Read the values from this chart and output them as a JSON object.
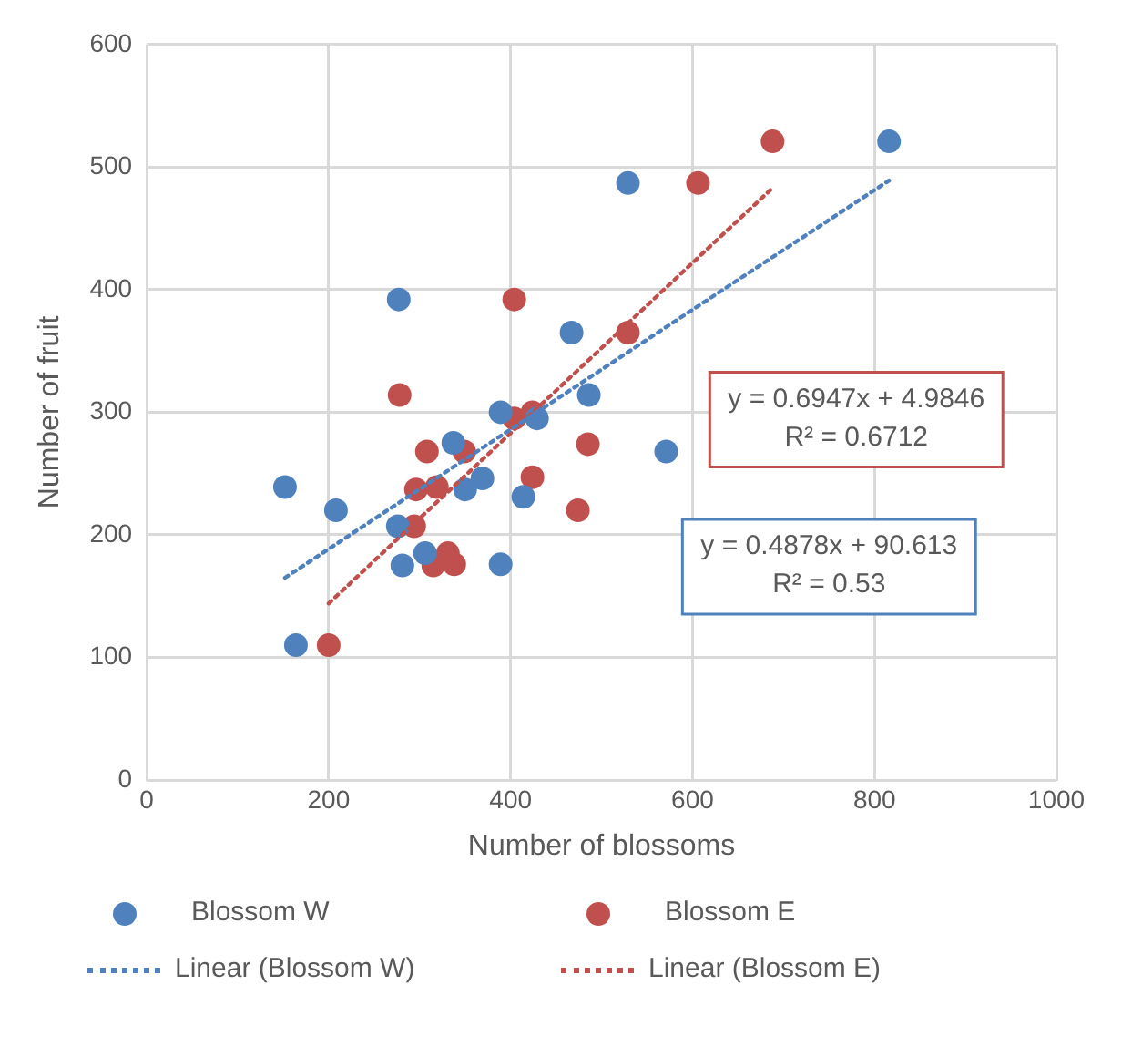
{
  "chart_data": {
    "type": "scatter",
    "xlabel": "Number of blossoms",
    "ylabel": "Number of fruit",
    "xlim": [
      0,
      1000
    ],
    "xticks": [
      0,
      200,
      400,
      600,
      800,
      1000
    ],
    "ylim": [
      0,
      600
    ],
    "yticks": [
      0,
      100,
      200,
      300,
      400,
      500,
      600
    ],
    "grid": true,
    "legend": "bottom",
    "marker": "circle",
    "series": [
      {
        "name": "Blossom W",
        "color": "#4f81bd",
        "x": [
          152,
          208,
          277,
          276,
          281,
          306,
          164,
          337,
          350,
          369,
          389,
          389,
          414,
          429,
          467,
          486,
          529,
          816,
          571
        ],
        "values": [
          239,
          220,
          392,
          207,
          175,
          185,
          110,
          275,
          237,
          246,
          300,
          176,
          231,
          295,
          365,
          314,
          487,
          521,
          268
        ]
      },
      {
        "name": "Blossom E",
        "color": "#c0504d",
        "x": [
          200,
          278,
          404,
          308,
          349,
          296,
          319,
          294,
          315,
          331,
          338,
          404,
          424,
          424,
          485,
          474,
          529,
          606,
          688
        ],
        "values": [
          110,
          314,
          392,
          268,
          268,
          237,
          239,
          207,
          175,
          185,
          176,
          295,
          300,
          247,
          274,
          220,
          365,
          487,
          521
        ]
      },
      {
        "name": "Linear (Blossom W)",
        "type": "line",
        "color": "#4f81bd",
        "line_style": "dotted",
        "marker": "none",
        "x": [
          152,
          816
        ],
        "values": [
          165,
          489
        ]
      },
      {
        "name": "Linear (Blossom E)",
        "type": "line",
        "color": "#c0504d",
        "line_style": "dotted",
        "marker": "none",
        "x": [
          200,
          688
        ],
        "values": [
          144,
          483
        ]
      }
    ],
    "annotations": [
      "y = 0.6947x + 4.9846\nR² = 0.6712",
      "y = 0.4878x + 90.613\nR² = 0.53"
    ]
  }
}
